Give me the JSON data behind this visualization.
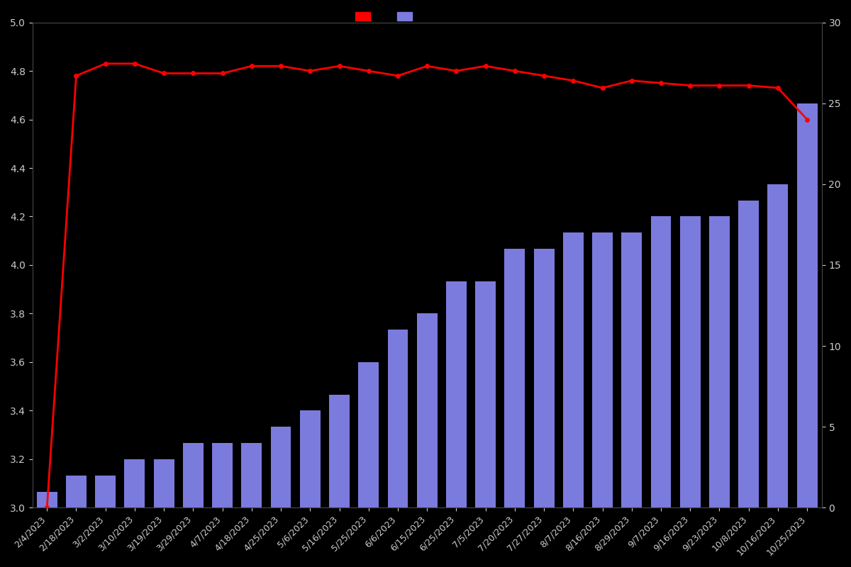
{
  "dates": [
    "2/4/2023",
    "2/18/2023",
    "3/2/2023",
    "3/10/2023",
    "3/19/2023",
    "3/29/2023",
    "4/7/2023",
    "4/18/2023",
    "4/25/2023",
    "5/6/2023",
    "5/16/2023",
    "5/25/2023",
    "6/6/2023",
    "6/15/2023",
    "6/25/2023",
    "7/5/2023",
    "7/20/2023",
    "7/27/2023",
    "8/7/2023",
    "8/16/2023",
    "8/29/2023",
    "9/7/2023",
    "9/16/2023",
    "9/23/2023",
    "10/8/2023",
    "10/16/2023",
    "10/25/2023"
  ],
  "bar_counts": [
    1,
    2,
    2,
    3,
    3,
    4,
    4,
    4,
    5,
    6,
    7,
    9,
    11,
    12,
    14,
    14,
    16,
    16,
    17,
    17,
    17,
    18,
    18,
    18,
    19,
    20,
    25
  ],
  "line_values": [
    3.0,
    4.78,
    4.83,
    4.83,
    4.79,
    4.79,
    4.79,
    4.82,
    4.82,
    4.8,
    4.82,
    4.8,
    4.78,
    4.82,
    4.8,
    4.82,
    4.8,
    4.78,
    4.76,
    4.73,
    4.76,
    4.75,
    4.74,
    4.74,
    4.74,
    4.73,
    4.6
  ],
  "bar_color": "#7b7bde",
  "line_color": "#ff0000",
  "background_color": "#000000",
  "text_color": "#cccccc",
  "ylim_left": [
    3.0,
    5.0
  ],
  "ylim_right": [
    0,
    30
  ],
  "yticks_left": [
    3.0,
    3.2,
    3.4,
    3.6,
    3.8,
    4.0,
    4.2,
    4.4,
    4.6,
    4.8,
    5.0
  ],
  "yticks_right": [
    0,
    5,
    10,
    15,
    20,
    25,
    30
  ]
}
